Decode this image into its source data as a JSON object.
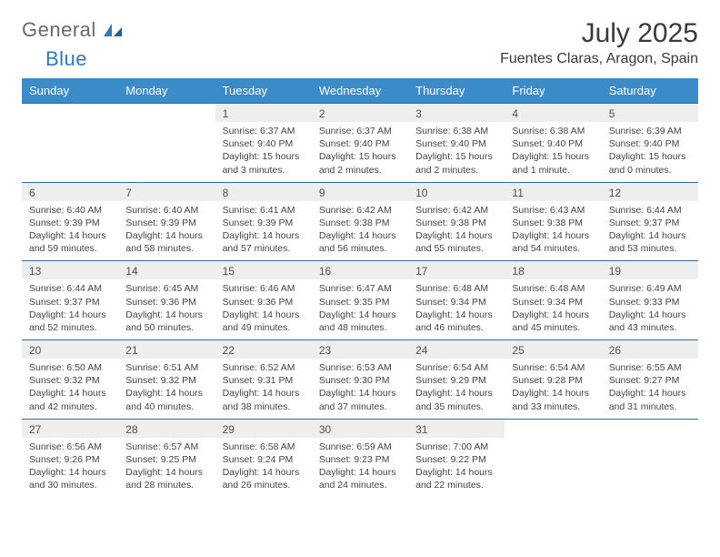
{
  "brand": {
    "general": "General",
    "blue": "Blue"
  },
  "title": "July 2025",
  "location": "Fuentes Claras, Aragon, Spain",
  "colors": {
    "header_bg": "#3b8bc9",
    "header_border": "#2f6ea8",
    "daynum_bg": "#eeeeee",
    "text": "#444444",
    "brand_gray": "#6a6a6a",
    "brand_blue": "#2f78bd"
  },
  "daysOfWeek": [
    "Sunday",
    "Monday",
    "Tuesday",
    "Wednesday",
    "Thursday",
    "Friday",
    "Saturday"
  ],
  "weeks": [
    [
      {
        "n": "",
        "lines": []
      },
      {
        "n": "",
        "lines": []
      },
      {
        "n": "1",
        "lines": [
          "Sunrise: 6:37 AM",
          "Sunset: 9:40 PM",
          "Daylight: 15 hours",
          "and 3 minutes."
        ]
      },
      {
        "n": "2",
        "lines": [
          "Sunrise: 6:37 AM",
          "Sunset: 9:40 PM",
          "Daylight: 15 hours",
          "and 2 minutes."
        ]
      },
      {
        "n": "3",
        "lines": [
          "Sunrise: 6:38 AM",
          "Sunset: 9:40 PM",
          "Daylight: 15 hours",
          "and 2 minutes."
        ]
      },
      {
        "n": "4",
        "lines": [
          "Sunrise: 6:38 AM",
          "Sunset: 9:40 PM",
          "Daylight: 15 hours",
          "and 1 minute."
        ]
      },
      {
        "n": "5",
        "lines": [
          "Sunrise: 6:39 AM",
          "Sunset: 9:40 PM",
          "Daylight: 15 hours",
          "and 0 minutes."
        ]
      }
    ],
    [
      {
        "n": "6",
        "lines": [
          "Sunrise: 6:40 AM",
          "Sunset: 9:39 PM",
          "Daylight: 14 hours",
          "and 59 minutes."
        ]
      },
      {
        "n": "7",
        "lines": [
          "Sunrise: 6:40 AM",
          "Sunset: 9:39 PM",
          "Daylight: 14 hours",
          "and 58 minutes."
        ]
      },
      {
        "n": "8",
        "lines": [
          "Sunrise: 6:41 AM",
          "Sunset: 9:39 PM",
          "Daylight: 14 hours",
          "and 57 minutes."
        ]
      },
      {
        "n": "9",
        "lines": [
          "Sunrise: 6:42 AM",
          "Sunset: 9:38 PM",
          "Daylight: 14 hours",
          "and 56 minutes."
        ]
      },
      {
        "n": "10",
        "lines": [
          "Sunrise: 6:42 AM",
          "Sunset: 9:38 PM",
          "Daylight: 14 hours",
          "and 55 minutes."
        ]
      },
      {
        "n": "11",
        "lines": [
          "Sunrise: 6:43 AM",
          "Sunset: 9:38 PM",
          "Daylight: 14 hours",
          "and 54 minutes."
        ]
      },
      {
        "n": "12",
        "lines": [
          "Sunrise: 6:44 AM",
          "Sunset: 9:37 PM",
          "Daylight: 14 hours",
          "and 53 minutes."
        ]
      }
    ],
    [
      {
        "n": "13",
        "lines": [
          "Sunrise: 6:44 AM",
          "Sunset: 9:37 PM",
          "Daylight: 14 hours",
          "and 52 minutes."
        ]
      },
      {
        "n": "14",
        "lines": [
          "Sunrise: 6:45 AM",
          "Sunset: 9:36 PM",
          "Daylight: 14 hours",
          "and 50 minutes."
        ]
      },
      {
        "n": "15",
        "lines": [
          "Sunrise: 6:46 AM",
          "Sunset: 9:36 PM",
          "Daylight: 14 hours",
          "and 49 minutes."
        ]
      },
      {
        "n": "16",
        "lines": [
          "Sunrise: 6:47 AM",
          "Sunset: 9:35 PM",
          "Daylight: 14 hours",
          "and 48 minutes."
        ]
      },
      {
        "n": "17",
        "lines": [
          "Sunrise: 6:48 AM",
          "Sunset: 9:34 PM",
          "Daylight: 14 hours",
          "and 46 minutes."
        ]
      },
      {
        "n": "18",
        "lines": [
          "Sunrise: 6:48 AM",
          "Sunset: 9:34 PM",
          "Daylight: 14 hours",
          "and 45 minutes."
        ]
      },
      {
        "n": "19",
        "lines": [
          "Sunrise: 6:49 AM",
          "Sunset: 9:33 PM",
          "Daylight: 14 hours",
          "and 43 minutes."
        ]
      }
    ],
    [
      {
        "n": "20",
        "lines": [
          "Sunrise: 6:50 AM",
          "Sunset: 9:32 PM",
          "Daylight: 14 hours",
          "and 42 minutes."
        ]
      },
      {
        "n": "21",
        "lines": [
          "Sunrise: 6:51 AM",
          "Sunset: 9:32 PM",
          "Daylight: 14 hours",
          "and 40 minutes."
        ]
      },
      {
        "n": "22",
        "lines": [
          "Sunrise: 6:52 AM",
          "Sunset: 9:31 PM",
          "Daylight: 14 hours",
          "and 38 minutes."
        ]
      },
      {
        "n": "23",
        "lines": [
          "Sunrise: 6:53 AM",
          "Sunset: 9:30 PM",
          "Daylight: 14 hours",
          "and 37 minutes."
        ]
      },
      {
        "n": "24",
        "lines": [
          "Sunrise: 6:54 AM",
          "Sunset: 9:29 PM",
          "Daylight: 14 hours",
          "and 35 minutes."
        ]
      },
      {
        "n": "25",
        "lines": [
          "Sunrise: 6:54 AM",
          "Sunset: 9:28 PM",
          "Daylight: 14 hours",
          "and 33 minutes."
        ]
      },
      {
        "n": "26",
        "lines": [
          "Sunrise: 6:55 AM",
          "Sunset: 9:27 PM",
          "Daylight: 14 hours",
          "and 31 minutes."
        ]
      }
    ],
    [
      {
        "n": "27",
        "lines": [
          "Sunrise: 6:56 AM",
          "Sunset: 9:26 PM",
          "Daylight: 14 hours",
          "and 30 minutes."
        ]
      },
      {
        "n": "28",
        "lines": [
          "Sunrise: 6:57 AM",
          "Sunset: 9:25 PM",
          "Daylight: 14 hours",
          "and 28 minutes."
        ]
      },
      {
        "n": "29",
        "lines": [
          "Sunrise: 6:58 AM",
          "Sunset: 9:24 PM",
          "Daylight: 14 hours",
          "and 26 minutes."
        ]
      },
      {
        "n": "30",
        "lines": [
          "Sunrise: 6:59 AM",
          "Sunset: 9:23 PM",
          "Daylight: 14 hours",
          "and 24 minutes."
        ]
      },
      {
        "n": "31",
        "lines": [
          "Sunrise: 7:00 AM",
          "Sunset: 9:22 PM",
          "Daylight: 14 hours",
          "and 22 minutes."
        ]
      },
      {
        "n": "",
        "lines": []
      },
      {
        "n": "",
        "lines": []
      }
    ]
  ]
}
